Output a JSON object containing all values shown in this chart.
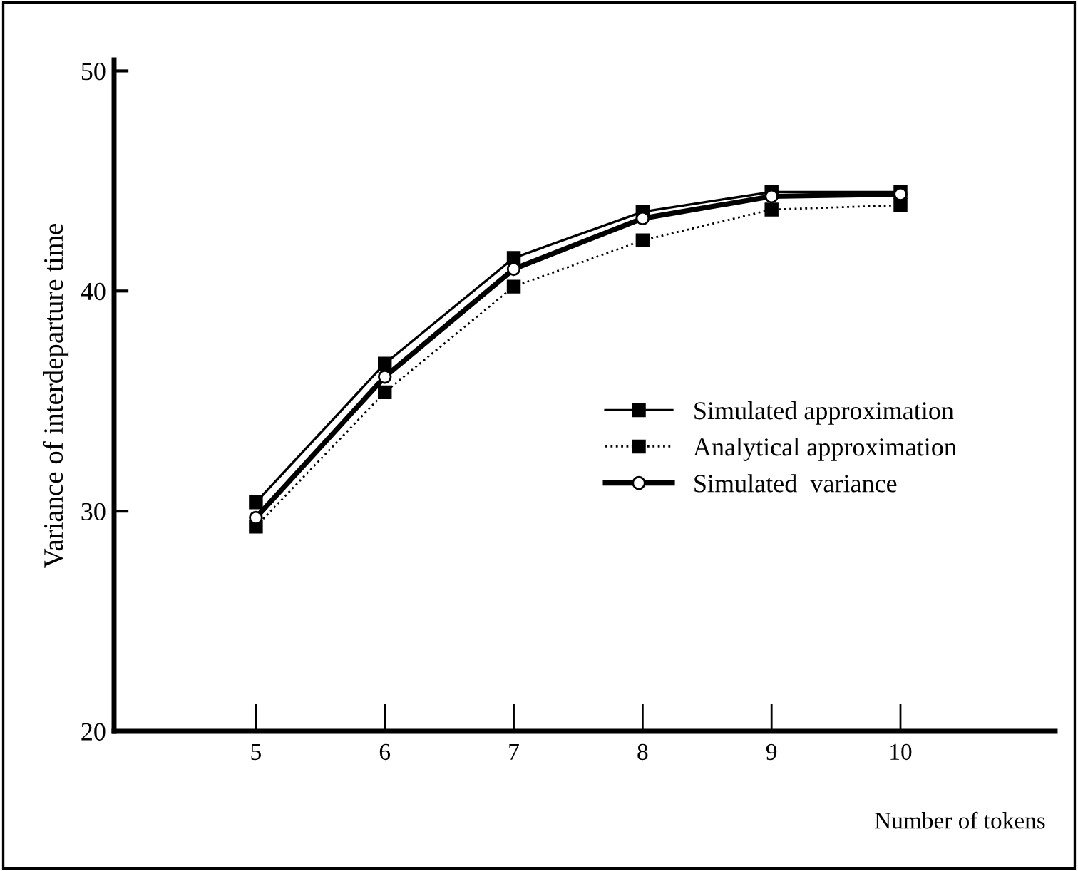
{
  "chart_data": {
    "type": "line",
    "xlabel": "Number of tokens",
    "ylabel": "Variance of interdeparture time",
    "x": [
      5,
      6,
      7,
      8,
      9,
      10
    ],
    "xlim": [
      3.9,
      11.2
    ],
    "xticks": [
      5,
      6,
      7,
      8,
      9,
      10
    ],
    "ylim": [
      20,
      50.5
    ],
    "yticks": [
      20,
      30,
      40,
      50
    ],
    "grid": false,
    "legend": "right",
    "series": [
      {
        "name": "Simulated approximation",
        "color": "#000000",
        "values": [
          30.4,
          36.7,
          41.5,
          43.6,
          44.5,
          44.5
        ],
        "marker": "square",
        "line_style": "solid"
      },
      {
        "name": "Analytical approximation",
        "color": "#000000",
        "values": [
          29.3,
          35.4,
          40.2,
          42.3,
          43.7,
          43.9
        ],
        "marker": "square",
        "line_style": "dotted"
      },
      {
        "name": "Simulated  variance",
        "color": "#000000",
        "values": [
          29.7,
          36.1,
          41.0,
          43.3,
          44.3,
          44.4
        ],
        "marker": "circle",
        "line_style": "solid"
      }
    ]
  }
}
